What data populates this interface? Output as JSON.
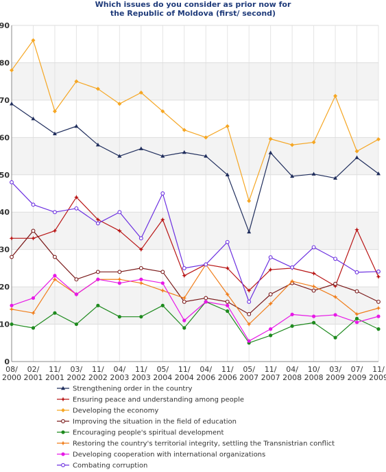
{
  "chart_data": {
    "type": "line",
    "title_lines": [
      "Which issues do you consider as prior now for",
      "the Republic of Moldova (first/ second)"
    ],
    "categories": [
      [
        "08/",
        "2000"
      ],
      [
        "02/",
        "2001"
      ],
      [
        "11/",
        "2001"
      ],
      [
        "03/",
        "2002"
      ],
      [
        "11/",
        "2002"
      ],
      [
        "04/",
        "2003"
      ],
      [
        "11/",
        "2003"
      ],
      [
        "05/",
        "2004"
      ],
      [
        "11/",
        "2004"
      ],
      [
        "04/",
        "2006"
      ],
      [
        "11/",
        "2006"
      ],
      [
        "05/",
        "2007"
      ],
      [
        "11/",
        "2007"
      ],
      [
        "04/",
        "2008"
      ],
      [
        "10/",
        "2008"
      ],
      [
        "03/",
        "2009"
      ],
      [
        "07/",
        "2009"
      ],
      [
        "11/",
        "2009"
      ]
    ],
    "ylim": [
      0,
      90
    ],
    "yticks": [
      0,
      10,
      20,
      30,
      40,
      50,
      60,
      70,
      80,
      90
    ],
    "grid": true,
    "legend_position": "bottom",
    "series": [
      {
        "name": "Strengthening order in the country",
        "color": "#1f2d5c",
        "marker": "triangle",
        "values": [
          69,
          65,
          61,
          63,
          58,
          55,
          57,
          55,
          56,
          55,
          50,
          34.7,
          55.9,
          49.6,
          50.2,
          49.1,
          54.6,
          50.3
        ]
      },
      {
        "name": "Ensuring peace and understanding among people",
        "color": "#b81414",
        "marker": "star",
        "values": [
          33,
          33,
          35,
          44,
          38,
          35,
          30,
          38,
          23,
          26,
          25,
          19,
          24.6,
          25,
          23.6,
          20.2,
          35.3,
          22.7
        ]
      },
      {
        "name": "Developing the economy",
        "color": "#f5a623",
        "marker": "diamond",
        "values": [
          78,
          86,
          67,
          75,
          73,
          69,
          72,
          67,
          62,
          60,
          63,
          43,
          59.6,
          58,
          58.7,
          71.1,
          56.3,
          59.5
        ]
      },
      {
        "name": "Improving the situation in the field of education",
        "color": "#7a1a1a",
        "marker": "circle-open",
        "values": [
          28,
          35,
          28,
          22,
          24,
          24,
          25,
          24,
          16,
          17,
          16,
          12.7,
          18,
          21,
          19,
          20.8,
          18.8,
          16
        ]
      },
      {
        "name": "Encouraging people's spiritual development",
        "color": "#1e8a1e",
        "marker": "circle",
        "values": [
          10,
          9,
          13,
          10,
          15,
          12,
          12,
          15,
          9,
          16,
          13.5,
          5,
          7,
          9.5,
          10.4,
          6.4,
          11.5,
          8.7
        ]
      },
      {
        "name": "Restoring the country's territorial integrity, settling the Transnistrian conflict",
        "color": "#f07d1a",
        "marker": "star",
        "values": [
          14,
          13,
          22,
          18,
          22,
          22,
          21,
          19,
          17,
          26,
          18,
          10,
          15.5,
          21.5,
          20.1,
          17.3,
          12.7,
          14.3
        ]
      },
      {
        "name": "Developing cooperation with  international organizations",
        "color": "#e619e6",
        "marker": "circle",
        "values": [
          15,
          17,
          23,
          18,
          22,
          21,
          22,
          21,
          11,
          16,
          15,
          5.5,
          8.7,
          12.6,
          12.1,
          12.5,
          10.5,
          12.1
        ]
      },
      {
        "name": "Combating corruption",
        "color": "#6b2fe0",
        "marker": "circle-open",
        "values": [
          48,
          42,
          40,
          41,
          37,
          40,
          33,
          45,
          25,
          26,
          32,
          16,
          27.9,
          25.2,
          30.6,
          27.5,
          23.9,
          24.1
        ]
      }
    ]
  }
}
